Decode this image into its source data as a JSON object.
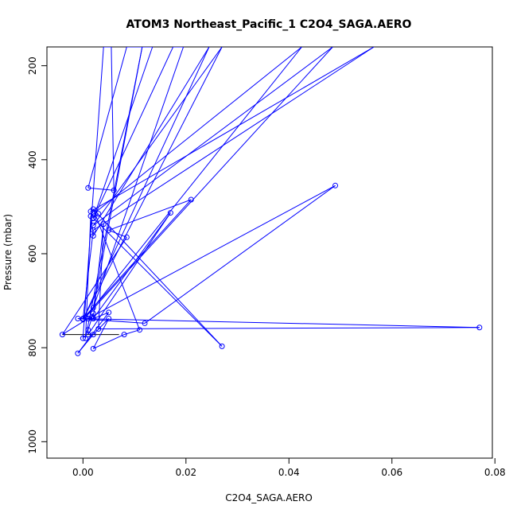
{
  "chart_data": {
    "type": "line",
    "title": "ATOM3 Northeast_Pacific_1 C2O4_SAGA.AERO",
    "xlabel": "C2O4_SAGA.AERO",
    "ylabel": "Pressure (mbar)",
    "xlim": [
      -0.007,
      0.0795
    ],
    "ylim": [
      1035,
      160
    ],
    "y_reversed": true,
    "grid": false,
    "x_ticks": [
      {
        "value": 0.0,
        "label": "0.00"
      },
      {
        "value": 0.02,
        "label": "0.02"
      },
      {
        "value": 0.04,
        "label": "0.04"
      },
      {
        "value": 0.06,
        "label": "0.06"
      },
      {
        "value": 0.08,
        "label": "0.08"
      }
    ],
    "y_ticks": [
      {
        "value": 200,
        "label": "200"
      },
      {
        "value": 400,
        "label": "400"
      },
      {
        "value": 600,
        "label": "600"
      },
      {
        "value": 800,
        "label": "800"
      },
      {
        "value": 1000,
        "label": "1000"
      }
    ],
    "color": "#0000ff",
    "series": [
      {
        "x": [
          0.0,
          0.004,
          0.0055,
          0.006,
          0.001,
          0.0085,
          0.0115,
          0.0135,
          0.002,
          0.0175,
          0.0195,
          0.002,
          0.0115,
          0.0005,
          0.0015,
          0.0425,
          0.0005,
          0.0485,
          0.002,
          0.027,
          0.0,
          0.0245,
          0.002,
          0.0015,
          0.0565,
          0.002,
          0.0,
          0.021,
          0.005,
          0.0085,
          -0.004,
          0.001,
          0.049,
          0.012,
          -0.001,
          0.077,
          0.003,
          0.004,
          0.002,
          0.017,
          0.001,
          0.001,
          0.002,
          0.001,
          0.002,
          0.005,
          -0.001,
          0.002,
          0.005,
          0.002,
          0.008,
          0.011,
          0.002,
          0.027,
          0.002,
          0.003
        ],
        "y": [
          780,
          160,
          160,
          465,
          460,
          160,
          160,
          160,
          525,
          160,
          160,
          715,
          160,
          780,
          520,
          160,
          735,
          160,
          540,
          160,
          740,
          160,
          562,
          510,
          160,
          550,
          738,
          485,
          550,
          565,
          772,
          738,
          455,
          748,
          738,
          757,
          760,
          537,
          738,
          513,
          772,
          762,
          727,
          738,
          738,
          725,
          812,
          772,
          738,
          802,
          772,
          762,
          505,
          797,
          524,
          515
        ]
      }
    ],
    "error_bars": [
      {
        "y": 772,
        "x_low": -0.004,
        "x_high": 0.007
      }
    ]
  }
}
